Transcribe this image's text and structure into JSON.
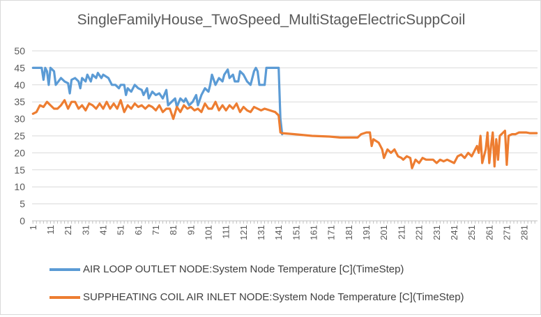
{
  "chart_data": {
    "type": "line",
    "title": "SingleFamilyHouse_TwoSpeed_MultiStageElectricSuppCoil",
    "xlabel": "",
    "ylabel": "",
    "ylim": [
      0,
      50
    ],
    "y_ticks": [
      0,
      5,
      10,
      15,
      20,
      25,
      30,
      35,
      40,
      45,
      50
    ],
    "x_range": [
      1,
      288
    ],
    "x_ticks": [
      "1",
      "11",
      "21",
      "31",
      "41",
      "51",
      "61",
      "71",
      "81",
      "91",
      "101",
      "111",
      "121",
      "131",
      "141",
      "151",
      "161",
      "171",
      "181",
      "191",
      "201",
      "211",
      "221",
      "231",
      "241",
      "251",
      "261",
      "271",
      "281"
    ],
    "grid": "horizontal",
    "legend_position": "bottom",
    "series": [
      {
        "name": "AIR LOOP OUTLET NODE:System Node Temperature [C](TimeStep)",
        "color": "#5b9bd5",
        "points": [
          [
            1,
            45
          ],
          [
            6,
            45
          ],
          [
            7,
            41.5
          ],
          [
            8,
            45
          ],
          [
            9,
            44
          ],
          [
            10,
            40
          ],
          [
            11,
            45
          ],
          [
            13,
            44
          ],
          [
            14,
            40
          ],
          [
            17,
            42
          ],
          [
            19,
            41
          ],
          [
            21,
            40.5
          ],
          [
            22,
            37.5
          ],
          [
            23,
            41.5
          ],
          [
            25,
            42
          ],
          [
            27,
            41
          ],
          [
            28,
            39
          ],
          [
            29,
            42
          ],
          [
            31,
            41
          ],
          [
            32,
            43
          ],
          [
            34,
            41
          ],
          [
            35,
            43
          ],
          [
            37,
            42
          ],
          [
            38,
            43.5
          ],
          [
            40,
            42
          ],
          [
            41,
            43
          ],
          [
            44,
            42
          ],
          [
            45,
            41
          ],
          [
            46,
            40
          ],
          [
            48,
            40
          ],
          [
            50,
            39
          ],
          [
            51,
            40
          ],
          [
            53,
            40
          ],
          [
            54,
            37
          ],
          [
            55,
            39
          ],
          [
            57,
            38
          ],
          [
            59,
            40
          ],
          [
            61,
            39
          ],
          [
            63,
            38.5
          ],
          [
            64,
            37
          ],
          [
            66,
            39
          ],
          [
            67,
            36
          ],
          [
            69,
            38
          ],
          [
            71,
            37
          ],
          [
            73,
            37.5
          ],
          [
            75,
            36
          ],
          [
            77,
            38.5
          ],
          [
            78,
            34
          ],
          [
            80,
            35
          ],
          [
            82,
            36
          ],
          [
            83,
            33.5
          ],
          [
            85,
            36
          ],
          [
            87,
            35
          ],
          [
            88,
            36
          ],
          [
            90,
            34
          ],
          [
            92,
            35
          ],
          [
            94,
            37
          ],
          [
            95,
            34
          ],
          [
            97,
            37
          ],
          [
            99,
            39
          ],
          [
            101,
            38
          ],
          [
            102,
            40
          ],
          [
            103,
            43
          ],
          [
            105,
            40
          ],
          [
            107,
            42
          ],
          [
            109,
            41
          ],
          [
            110,
            43
          ],
          [
            112,
            44.5
          ],
          [
            113,
            42
          ],
          [
            115,
            43
          ],
          [
            116,
            41
          ],
          [
            118,
            41
          ],
          [
            119,
            44
          ],
          [
            121,
            43
          ],
          [
            123,
            41
          ],
          [
            125,
            40
          ],
          [
            127,
            44
          ],
          [
            128,
            45
          ],
          [
            129,
            44
          ],
          [
            130,
            40
          ],
          [
            133,
            40
          ],
          [
            134,
            45
          ],
          [
            141,
            45
          ],
          [
            142,
            30
          ],
          [
            143,
            25.5
          ]
        ]
      },
      {
        "name": "SUPPHEATING COIL AIR INLET NODE:System Node Temperature [C](TimeStep)",
        "color": "#ed7d31",
        "points": [
          [
            1,
            31.5
          ],
          [
            3,
            32
          ],
          [
            5,
            34
          ],
          [
            7,
            33.5
          ],
          [
            9,
            35
          ],
          [
            11,
            34
          ],
          [
            13,
            33
          ],
          [
            15,
            33
          ],
          [
            17,
            34
          ],
          [
            19,
            35.5
          ],
          [
            21,
            33
          ],
          [
            23,
            35
          ],
          [
            25,
            35
          ],
          [
            27,
            33
          ],
          [
            29,
            34
          ],
          [
            31,
            32.5
          ],
          [
            33,
            34.5
          ],
          [
            35,
            34
          ],
          [
            37,
            33
          ],
          [
            39,
            34.5
          ],
          [
            41,
            33
          ],
          [
            43,
            35
          ],
          [
            45,
            33
          ],
          [
            47,
            34.5
          ],
          [
            49,
            33
          ],
          [
            51,
            35.5
          ],
          [
            53,
            32
          ],
          [
            55,
            34
          ],
          [
            57,
            33
          ],
          [
            59,
            34.5
          ],
          [
            61,
            33.5
          ],
          [
            63,
            34
          ],
          [
            65,
            33
          ],
          [
            67,
            34
          ],
          [
            69,
            33.5
          ],
          [
            71,
            32.5
          ],
          [
            73,
            34
          ],
          [
            75,
            32
          ],
          [
            77,
            33
          ],
          [
            79,
            33
          ],
          [
            81,
            30
          ],
          [
            83,
            33.5
          ],
          [
            85,
            32
          ],
          [
            87,
            34
          ],
          [
            89,
            33
          ],
          [
            91,
            33.5
          ],
          [
            93,
            32.5
          ],
          [
            95,
            33
          ],
          [
            97,
            32
          ],
          [
            99,
            34.5
          ],
          [
            101,
            33
          ],
          [
            103,
            33
          ],
          [
            105,
            35
          ],
          [
            107,
            32.5
          ],
          [
            109,
            34
          ],
          [
            111,
            32.5
          ],
          [
            113,
            34
          ],
          [
            115,
            33
          ],
          [
            117,
            34.5
          ],
          [
            119,
            32
          ],
          [
            121,
            33.5
          ],
          [
            123,
            32.5
          ],
          [
            125,
            32
          ],
          [
            127,
            33.5
          ],
          [
            129,
            33
          ],
          [
            131,
            32.5
          ],
          [
            133,
            33
          ],
          [
            136,
            32.5
          ],
          [
            139,
            32
          ],
          [
            141,
            31
          ],
          [
            142,
            26
          ],
          [
            143,
            25.8
          ],
          [
            150,
            25.5
          ],
          [
            160,
            25
          ],
          [
            170,
            24.8
          ],
          [
            176,
            24.5
          ],
          [
            186,
            24.5
          ],
          [
            188,
            25.5
          ],
          [
            191,
            26
          ],
          [
            193,
            26
          ],
          [
            194,
            22
          ],
          [
            195,
            24
          ],
          [
            198,
            23
          ],
          [
            200,
            21
          ],
          [
            201,
            18.5
          ],
          [
            203,
            21
          ],
          [
            205,
            20
          ],
          [
            207,
            21
          ],
          [
            209,
            19
          ],
          [
            211,
            18.5
          ],
          [
            212,
            18
          ],
          [
            214,
            19
          ],
          [
            216,
            18.5
          ],
          [
            217,
            15.5
          ],
          [
            219,
            18
          ],
          [
            221,
            17
          ],
          [
            223,
            18.5
          ],
          [
            225,
            18
          ],
          [
            227,
            18
          ],
          [
            229,
            18
          ],
          [
            231,
            17
          ],
          [
            233,
            18
          ],
          [
            235,
            17.5
          ],
          [
            237,
            18
          ],
          [
            239,
            17.5
          ],
          [
            241,
            17
          ],
          [
            243,
            19
          ],
          [
            245,
            19.5
          ],
          [
            247,
            18.5
          ],
          [
            249,
            20
          ],
          [
            251,
            19
          ],
          [
            253,
            21
          ],
          [
            254,
            22
          ],
          [
            255,
            20
          ],
          [
            256,
            25
          ],
          [
            257,
            17
          ],
          [
            259,
            21
          ],
          [
            260,
            26
          ],
          [
            261,
            17
          ],
          [
            262,
            22
          ],
          [
            263,
            26
          ],
          [
            264,
            16
          ],
          [
            265,
            24
          ],
          [
            266,
            18
          ],
          [
            267,
            25
          ],
          [
            269,
            26
          ],
          [
            270,
            26.5
          ],
          [
            271,
            16.5
          ],
          [
            272,
            25
          ],
          [
            274,
            25.5
          ],
          [
            276,
            25.5
          ],
          [
            278,
            26
          ],
          [
            280,
            26
          ],
          [
            282,
            26
          ],
          [
            284,
            25.8
          ],
          [
            286,
            25.8
          ],
          [
            288,
            25.8
          ]
        ]
      }
    ]
  }
}
